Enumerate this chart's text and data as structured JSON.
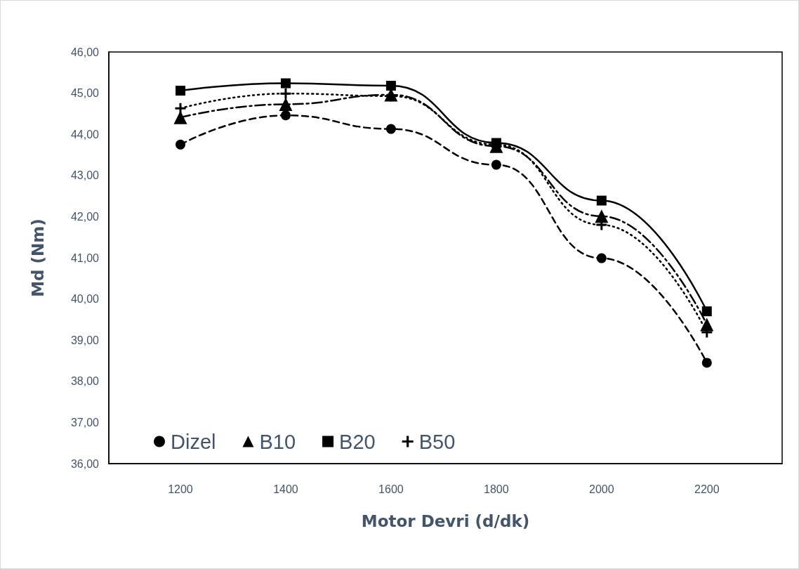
{
  "chart_data": {
    "type": "line",
    "xlabel": "Motor Devri (d/dk)",
    "ylabel": "Md (Nm)",
    "x": [
      1200,
      1400,
      1600,
      1800,
      2000,
      2200
    ],
    "series": [
      {
        "name": "Dizel",
        "color": "#000000",
        "marker": "circle",
        "line_style": "dashed",
        "values": [
          43.75,
          44.46,
          44.13,
          43.26,
          40.99,
          38.45
        ]
      },
      {
        "name": "B10",
        "color": "#000000",
        "marker": "triangle",
        "line_style": "dashed",
        "values": [
          44.41,
          44.73,
          44.96,
          43.71,
          42.01,
          39.38
        ]
      },
      {
        "name": "B20",
        "color": "#000000",
        "marker": "square",
        "line_style": "solid",
        "values": [
          45.06,
          45.24,
          45.18,
          43.79,
          42.39,
          39.7
        ]
      },
      {
        "name": "B50",
        "color": "#000000",
        "marker": "cross",
        "line_style": "dotted",
        "values": [
          44.63,
          44.99,
          44.93,
          43.75,
          41.8,
          39.19
        ]
      }
    ],
    "xlim": [
      1064,
      2343
    ],
    "xticks": [
      1200,
      1400,
      1600,
      1800,
      2000,
      2200
    ],
    "ylim": [
      36,
      46
    ],
    "yticks": [
      {
        "value": 36,
        "label": "36,00"
      },
      {
        "value": 37,
        "label": "37,00"
      },
      {
        "value": 38,
        "label": "38,00"
      },
      {
        "value": 39,
        "label": "39,00"
      },
      {
        "value": 40,
        "label": "40,00"
      },
      {
        "value": 41,
        "label": "41,00"
      },
      {
        "value": 42,
        "label": "42,00"
      },
      {
        "value": 43,
        "label": "43,00"
      },
      {
        "value": 44,
        "label": "44,00"
      },
      {
        "value": 45,
        "label": "45,00"
      },
      {
        "value": 46,
        "label": "46,00"
      }
    ],
    "grid": false,
    "legend": "bottom left"
  }
}
